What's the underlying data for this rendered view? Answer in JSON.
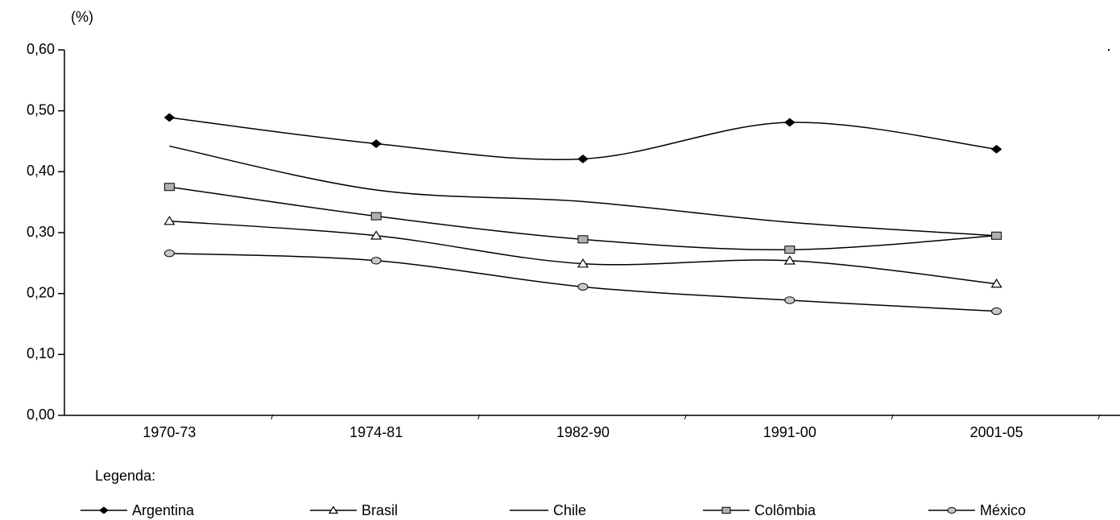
{
  "chart_data": {
    "type": "line",
    "y_label": "(%)",
    "legend_title": "Legenda:",
    "categories": [
      "1970-73",
      "1974-81",
      "1982-90",
      "1991-00",
      "2001-05"
    ],
    "series": [
      {
        "name": "Argentina",
        "color": "#000000",
        "marker": "diamond",
        "values": [
          0.489,
          0.446,
          0.421,
          0.481,
          0.437
        ]
      },
      {
        "name": "Brasil",
        "color": "#000000",
        "marker": "triangle",
        "values": [
          0.319,
          0.295,
          0.249,
          0.254,
          0.216
        ]
      },
      {
        "name": "Chile",
        "color": "#000000",
        "marker": "none",
        "values": [
          0.442,
          0.37,
          0.351,
          0.317,
          0.295
        ]
      },
      {
        "name": "Colômbia",
        "color": "#000000",
        "marker": "square",
        "values": [
          0.375,
          0.327,
          0.289,
          0.272,
          0.295
        ]
      },
      {
        "name": "México",
        "color": "#000000",
        "marker": "circle",
        "values": [
          0.266,
          0.254,
          0.211,
          0.189,
          0.171
        ]
      }
    ],
    "ylim": [
      0,
      0.6
    ],
    "yticks": [
      {
        "value": 0,
        "label": "0,00"
      },
      {
        "value": 0.1,
        "label": "0,10"
      },
      {
        "value": 0.2,
        "label": "0,20"
      },
      {
        "value": 0.3,
        "label": "0,30"
      },
      {
        "value": 0.4,
        "label": "0,40"
      },
      {
        "value": 0.5,
        "label": "0,50"
      },
      {
        "value": 0.6,
        "label": "0,60"
      }
    ],
    "legend": "bottom"
  }
}
